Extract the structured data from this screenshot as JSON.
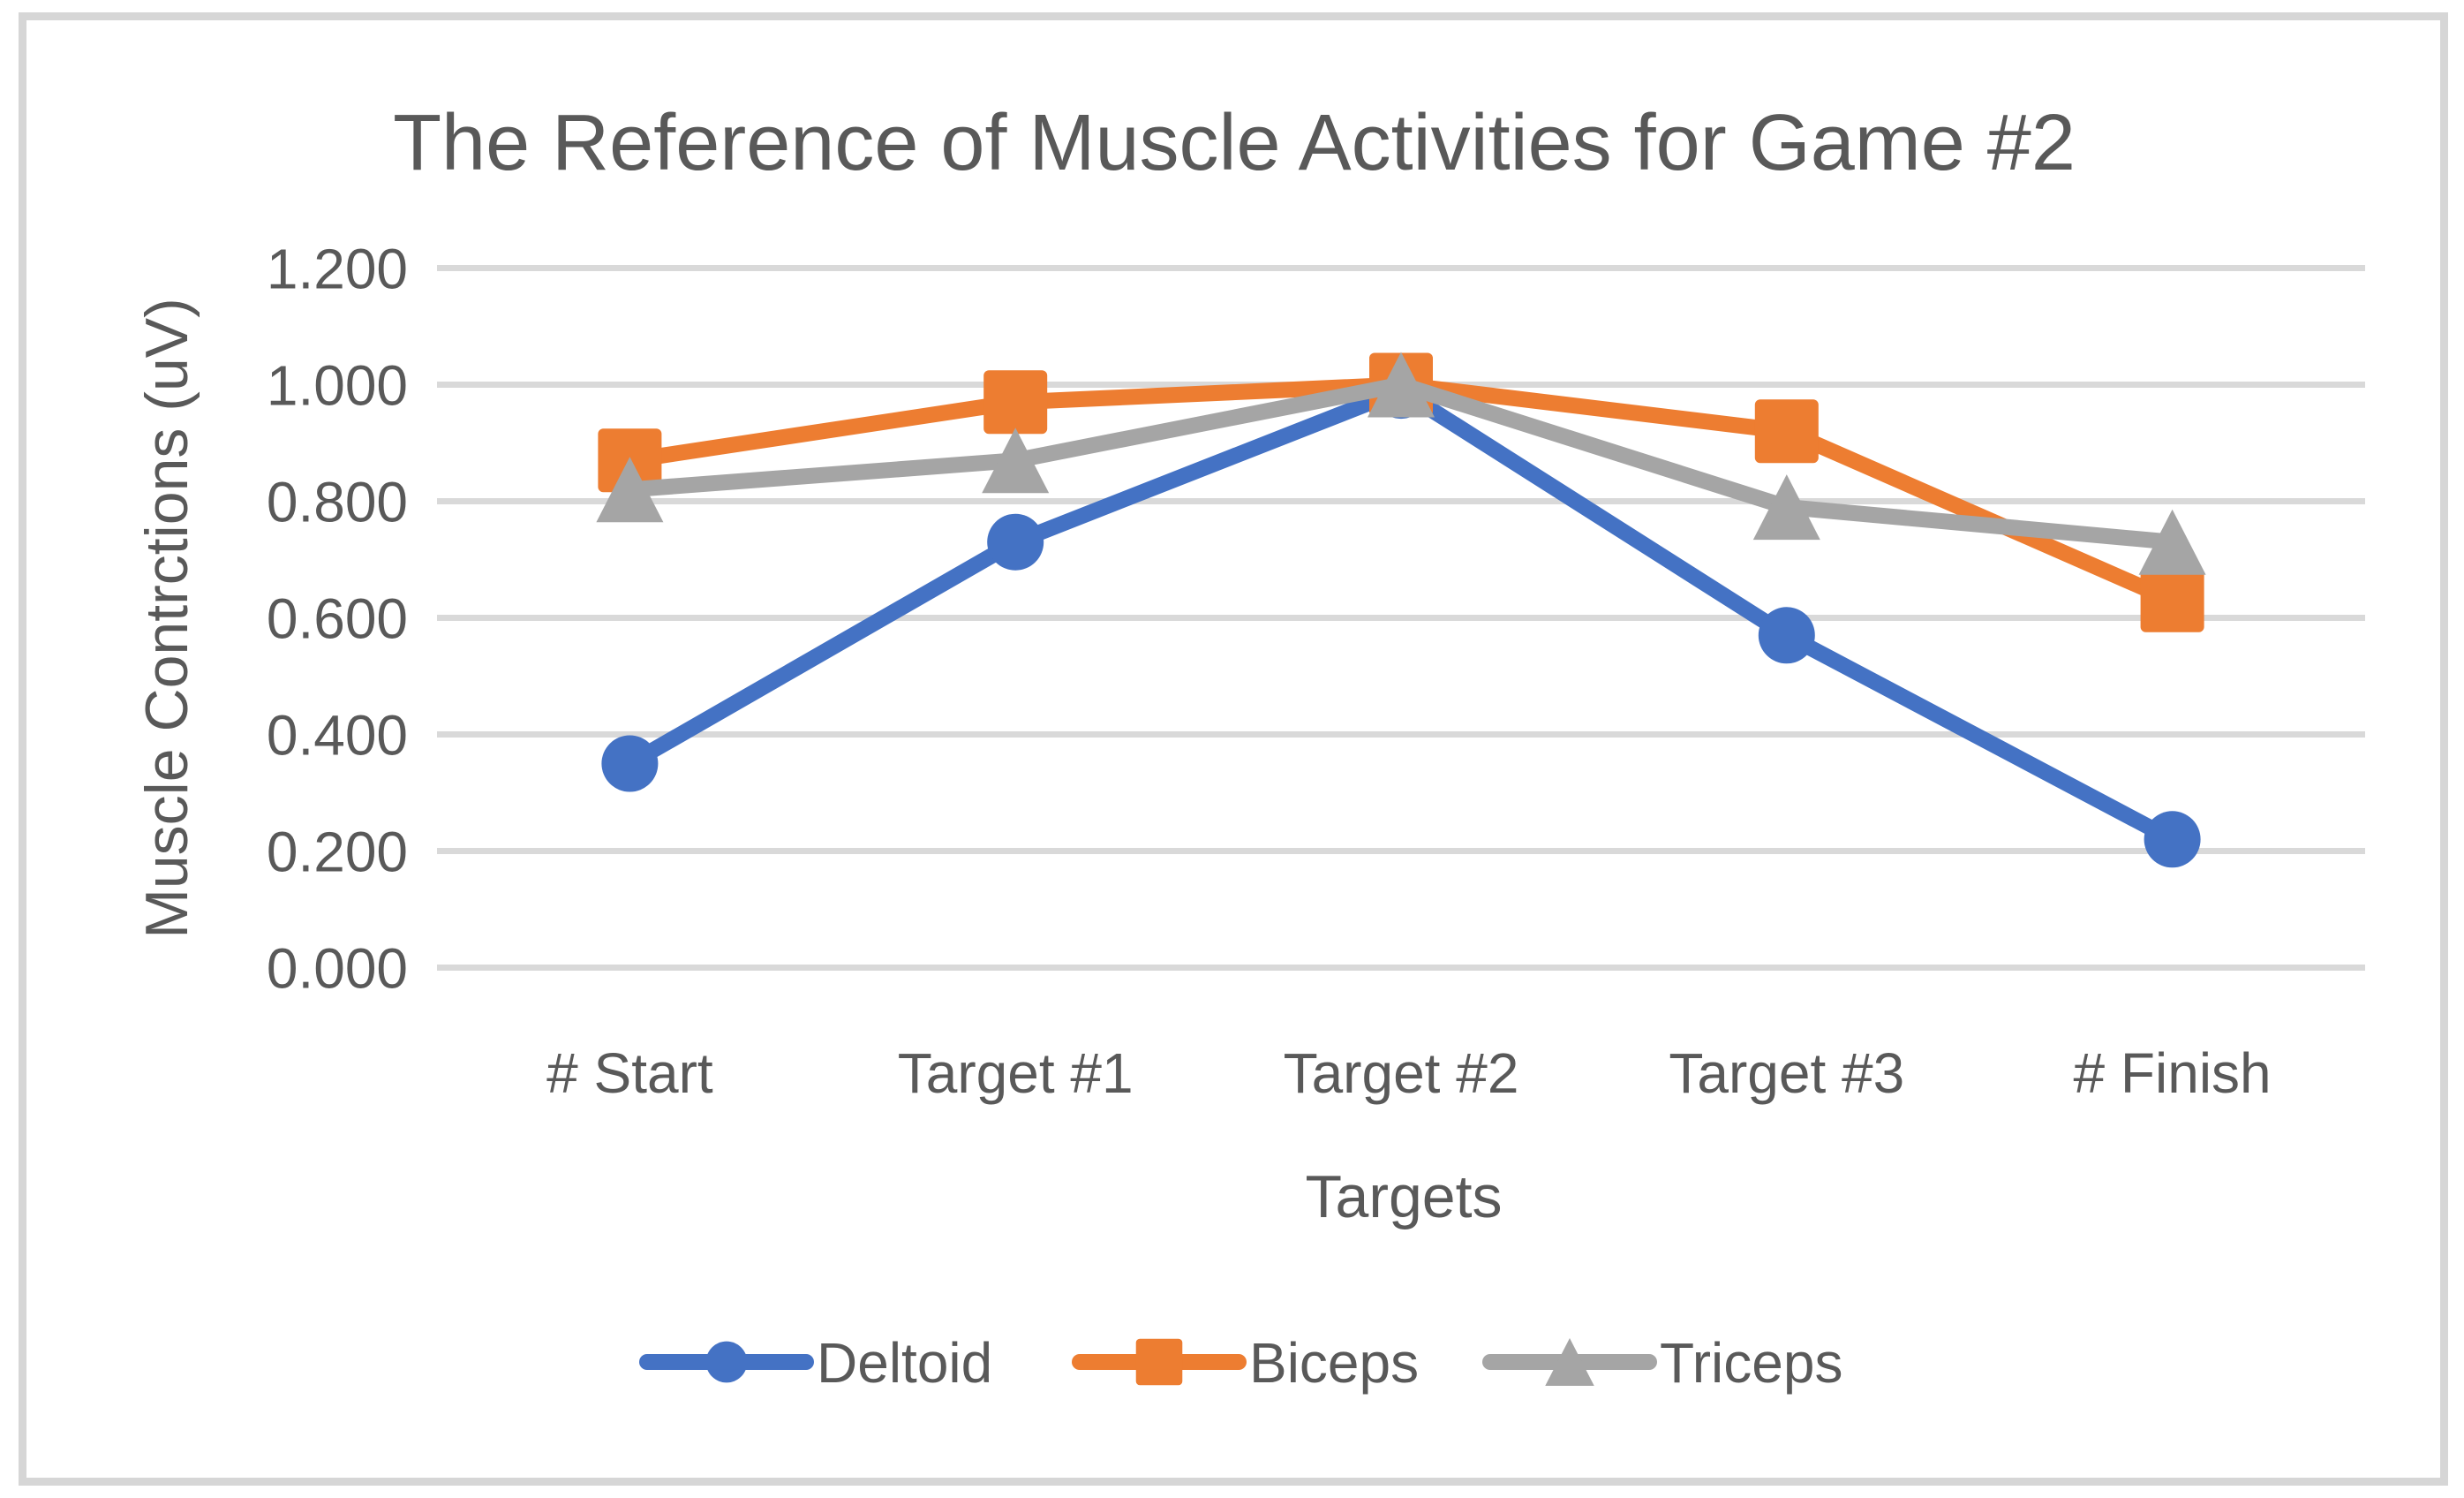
{
  "chart_data": {
    "type": "line",
    "title": "The Reference of Muscle Activities for Game #2",
    "xlabel": "Targets",
    "ylabel": "Muscle Contrctions (uV)",
    "categories": [
      "# Start",
      "Target #1",
      "Target #2",
      "Target #3",
      "# Finish"
    ],
    "series": [
      {
        "name": "Deltoid",
        "marker": "circle",
        "color": "#4472C4",
        "values": [
          0.35,
          0.73,
          0.99,
          0.57,
          0.22
        ]
      },
      {
        "name": "Biceps",
        "marker": "square",
        "color": "#ED7D31",
        "values": [
          0.87,
          0.97,
          1.0,
          0.92,
          0.63
        ]
      },
      {
        "name": "Triceps",
        "marker": "triangle",
        "color": "#A5A5A5",
        "values": [
          0.82,
          0.87,
          1.0,
          0.79,
          0.73
        ]
      }
    ],
    "y_axis": {
      "min": 0,
      "max": 1.2,
      "step": 0.2,
      "tick_labels": [
        "0.000",
        "0.200",
        "0.400",
        "0.600",
        "0.800",
        "1.000",
        "1.200"
      ]
    },
    "grid": true,
    "legend_position": "bottom",
    "colors": {
      "text": "#595959",
      "gridline": "#D9D9D9",
      "frame_border": "#D6D6D6",
      "background": "#FFFFFF"
    }
  }
}
